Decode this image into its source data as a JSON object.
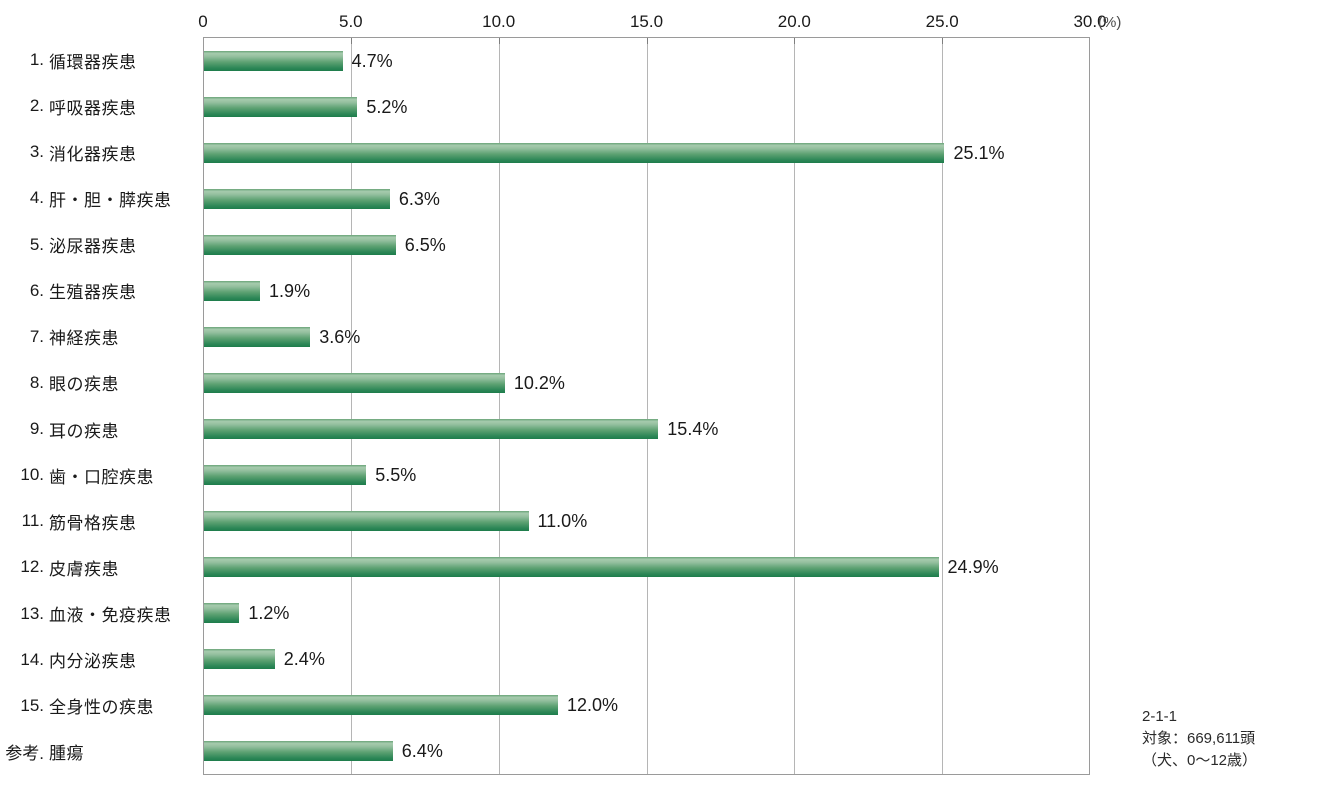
{
  "chart_data": {
    "type": "bar",
    "orientation": "horizontal",
    "title": "",
    "xlabel": "",
    "ylabel": "",
    "xlim": [
      0,
      30
    ],
    "grid": true,
    "unit_label": "(%)",
    "xticks": [
      0,
      5,
      10,
      15,
      20,
      25,
      30
    ],
    "xtick_labels": [
      "0",
      "5.0",
      "10.0",
      "15.0",
      "20.0",
      "25.0",
      "30.0"
    ],
    "bar_color_light": "#a6cbae",
    "bar_color_dark": "#1e7c4b",
    "categories": [
      {
        "prefix": "1.",
        "name": "循環器疾患"
      },
      {
        "prefix": "2.",
        "name": "呼吸器疾患"
      },
      {
        "prefix": "3.",
        "name": "消化器疾患"
      },
      {
        "prefix": "4.",
        "name": "肝・胆・膵疾患"
      },
      {
        "prefix": "5.",
        "name": "泌尿器疾患"
      },
      {
        "prefix": "6.",
        "name": "生殖器疾患"
      },
      {
        "prefix": "7.",
        "name": "神経疾患"
      },
      {
        "prefix": "8.",
        "name": "眼の疾患"
      },
      {
        "prefix": "9.",
        "name": "耳の疾患"
      },
      {
        "prefix": "10.",
        "name": "歯・口腔疾患"
      },
      {
        "prefix": "11.",
        "name": "筋骨格疾患"
      },
      {
        "prefix": "12.",
        "name": "皮膚疾患"
      },
      {
        "prefix": "13.",
        "name": "血液・免疫疾患"
      },
      {
        "prefix": "14.",
        "name": "内分泌疾患"
      },
      {
        "prefix": "15.",
        "name": "全身性の疾患"
      },
      {
        "prefix": "参考.",
        "name": "腫瘍"
      }
    ],
    "values": [
      4.7,
      5.2,
      25.1,
      6.3,
      6.5,
      1.9,
      3.6,
      10.2,
      15.4,
      5.5,
      11.0,
      24.9,
      1.2,
      2.4,
      12.0,
      6.4
    ],
    "value_labels": [
      "4.7%",
      "5.2%",
      "25.1%",
      "6.3%",
      "6.5%",
      "1.9%",
      "3.6%",
      "10.2%",
      "15.4%",
      "5.5%",
      "11.0%",
      "24.9%",
      "1.2%",
      "2.4%",
      "12.0%",
      "6.4%"
    ]
  },
  "footnote": {
    "line1": "2-1-1",
    "line2": "対象：669,611頭",
    "line3": "（犬、0～12歳）"
  }
}
